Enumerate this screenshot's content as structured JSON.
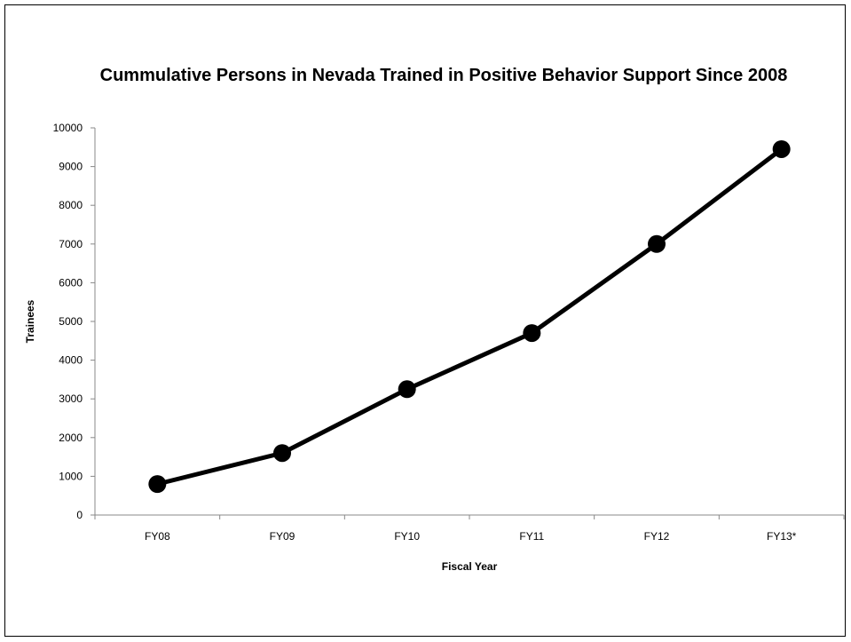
{
  "chart_data": {
    "type": "line",
    "title": "Cummulative Persons in Nevada Trained in Positive Behavior Support Since 2008",
    "xlabel": "Fiscal Year",
    "ylabel": "Trainees",
    "categories": [
      "FY08",
      "FY09",
      "FY10",
      "FY11",
      "FY12",
      "FY13*"
    ],
    "series": [
      {
        "values": [
          800,
          1600,
          3250,
          4700,
          7000,
          9450
        ]
      }
    ],
    "ylim": [
      0,
      10000
    ],
    "yticks": [
      0,
      1000,
      2000,
      3000,
      4000,
      5000,
      6000,
      7000,
      8000,
      9000,
      10000
    ],
    "grid": false,
    "legend": "none",
    "colors": {
      "line": "#000000",
      "marker": "#000000",
      "axis": "#888888"
    }
  }
}
